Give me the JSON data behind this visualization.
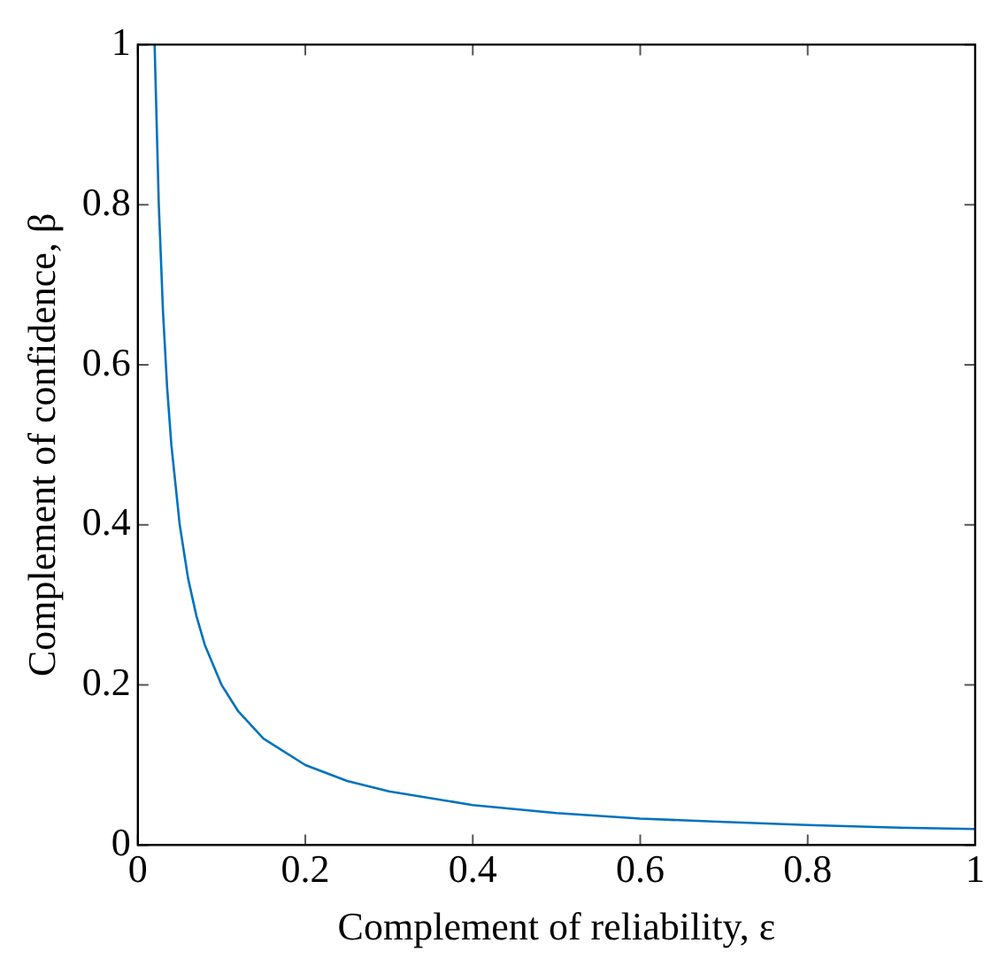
{
  "chart_data": {
    "type": "line",
    "xlabel": "Complement of reliability, ε",
    "ylabel": "Complement of confidence, β",
    "x": [
      0.02,
      0.025,
      0.03,
      0.035,
      0.04,
      0.05,
      0.06,
      0.07,
      0.08,
      0.1,
      0.12,
      0.15,
      0.2,
      0.25,
      0.3,
      0.4,
      0.5,
      0.6,
      0.7,
      0.8,
      0.9,
      1
    ],
    "series": [
      {
        "color": "#0072bd",
        "values": [
          1,
          0.8,
          0.667,
          0.571,
          0.5,
          0.4,
          0.333,
          0.286,
          0.25,
          0.2,
          0.167,
          0.133,
          0.1,
          0.08,
          0.067,
          0.05,
          0.04,
          0.033,
          0.029,
          0.025,
          0.022,
          0.02
        ]
      }
    ],
    "xlim": [
      0,
      1
    ],
    "ylim": [
      0,
      1
    ],
    "xticks": [
      0,
      0.2,
      0.4,
      0.6,
      0.8,
      1
    ],
    "yticks": [
      0,
      0.2,
      0.4,
      0.6,
      0.8,
      1
    ],
    "grid": false,
    "legend": false,
    "marker": "none",
    "line_style": "solid"
  }
}
